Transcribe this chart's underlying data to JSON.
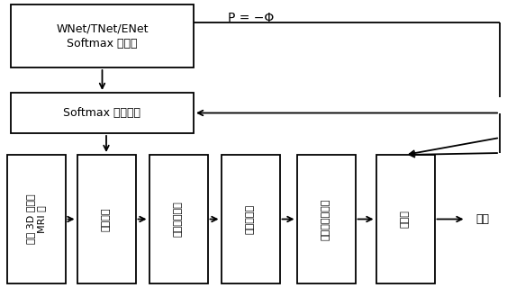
{
  "bg_color": "#ffffff",
  "figsize": [
    5.73,
    3.3
  ],
  "dpi": 100,
  "top_box": {
    "label": "WNet/TNet/ENet\nSoftmax 层输出"
  },
  "mid_box": {
    "label": "Softmax 层归一化"
  },
  "bottom_labels": [
    "输入 3D 脑肿瘤\nMRI 图",
    "数据传输",
    "加权滤波输出",
    "兼容性更新",
    "加入一元势函数",
    "归一化"
  ],
  "p_label": "P = −Φ",
  "output_label": "输出",
  "lw": 1.3
}
